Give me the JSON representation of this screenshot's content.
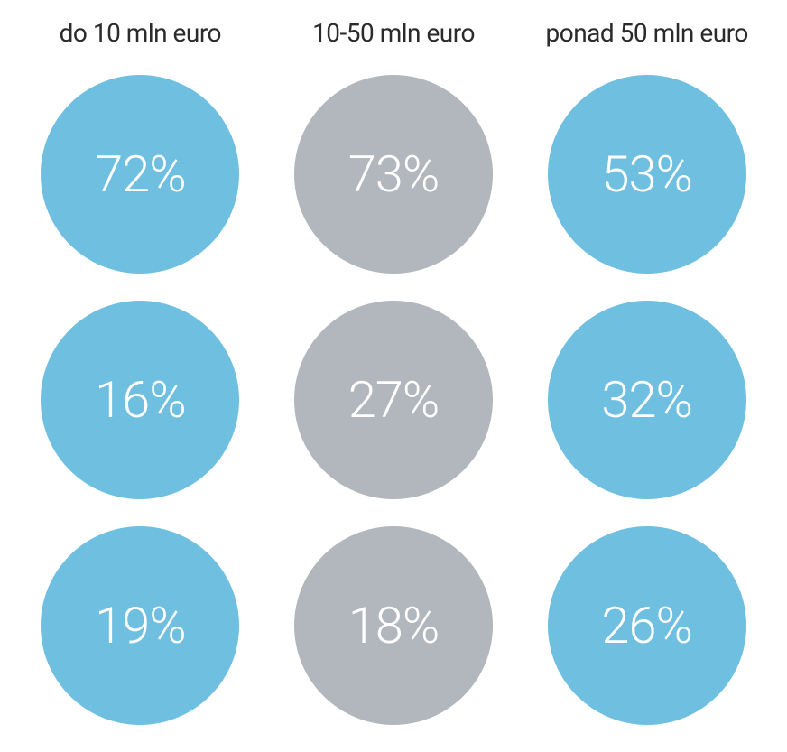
{
  "type": "infographic",
  "layout": "grid-3x3",
  "background_color": "#ffffff",
  "header_color": "#2b2b2b",
  "header_fontsize": 28,
  "circle_diameter": 220,
  "circle_text_color": "#ffffff",
  "circle_fontsize": 56,
  "columns": [
    {
      "header": "do 10 mln euro",
      "circle_color": "#6fbfe0",
      "values": [
        "72%",
        "16%",
        "19%"
      ]
    },
    {
      "header": "10-50 mln euro",
      "circle_color": "#b2b6bd",
      "values": [
        "73%",
        "27%",
        "18%"
      ]
    },
    {
      "header": "ponad 50 mln euro",
      "circle_color": "#6fbfe0",
      "values": [
        "53%",
        "32%",
        "26%"
      ]
    }
  ]
}
